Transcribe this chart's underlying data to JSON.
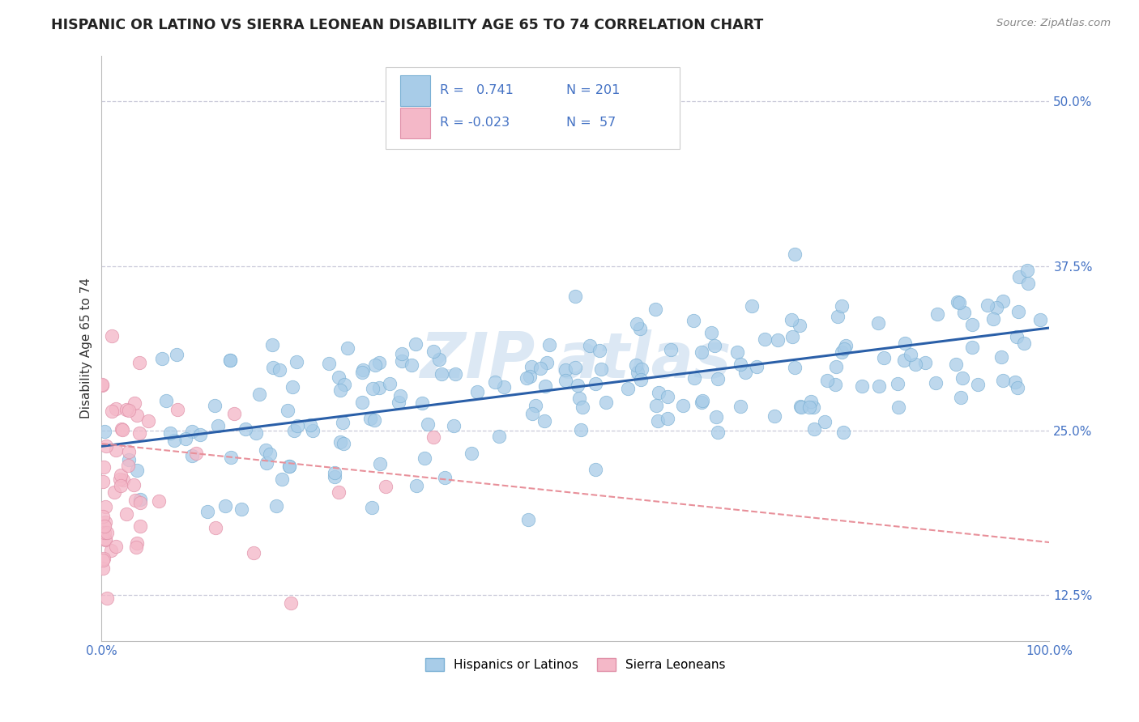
{
  "title": "HISPANIC OR LATINO VS SIERRA LEONEAN DISABILITY AGE 65 TO 74 CORRELATION CHART",
  "source": "Source: ZipAtlas.com",
  "ylabel": "Disability Age 65 to 74",
  "xlim": [
    0.0,
    1.0
  ],
  "ylim": [
    0.09,
    0.535
  ],
  "yticks": [
    0.125,
    0.25,
    0.375,
    0.5
  ],
  "ytick_labels": [
    "12.5%",
    "25.0%",
    "37.5%",
    "50.0%"
  ],
  "xticks": [
    0.0,
    1.0
  ],
  "xtick_labels": [
    "0.0%",
    "100.0%"
  ],
  "blue_color": "#a8cce8",
  "blue_edge_color": "#7ab0d4",
  "pink_color": "#f4b8c8",
  "pink_edge_color": "#e090a8",
  "blue_line_color": "#2a5fa8",
  "pink_line_color": "#e8909a",
  "tick_label_color": "#4472c4",
  "background_color": "#ffffff",
  "grid_color": "#c8c8d8",
  "watermark_color": "#dce8f4",
  "title_fontsize": 12.5,
  "blue_trend_x0": 0.0,
  "blue_trend_y0": 0.238,
  "blue_trend_x1": 1.0,
  "blue_trend_y1": 0.328,
  "pink_trend_x0": 0.0,
  "pink_trend_y0": 0.24,
  "pink_trend_x1": 1.0,
  "pink_trend_y1": 0.165
}
